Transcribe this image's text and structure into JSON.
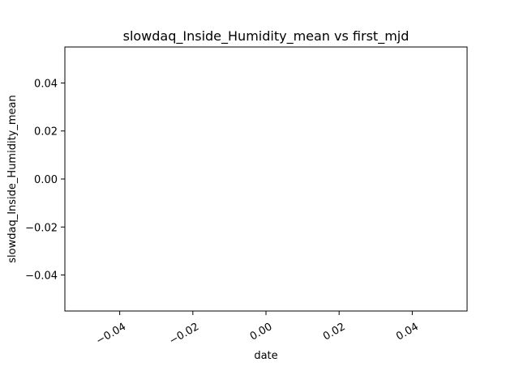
{
  "chart_data": {
    "type": "line",
    "title": "slowdaq_Inside_Humidity_mean vs first_mjd",
    "xlabel": "date",
    "ylabel": "slowdaq_Inside_Humidity_mean",
    "series": [],
    "xlim": [
      -0.055,
      0.055
    ],
    "ylim": [
      -0.055,
      0.055
    ],
    "x_ticks": [
      -0.04,
      -0.02,
      0.0,
      0.02,
      0.04
    ],
    "x_tick_labels": [
      "−0.04",
      "−0.02",
      "0.00",
      "0.02",
      "0.04"
    ],
    "y_ticks": [
      0.04,
      0.02,
      0.0,
      -0.02,
      -0.04
    ],
    "y_tick_labels": [
      "0.04",
      "0.02",
      "0.00",
      "−0.02",
      "−0.04"
    ],
    "x_tick_label_rotation_deg": 30,
    "grid": false
  }
}
